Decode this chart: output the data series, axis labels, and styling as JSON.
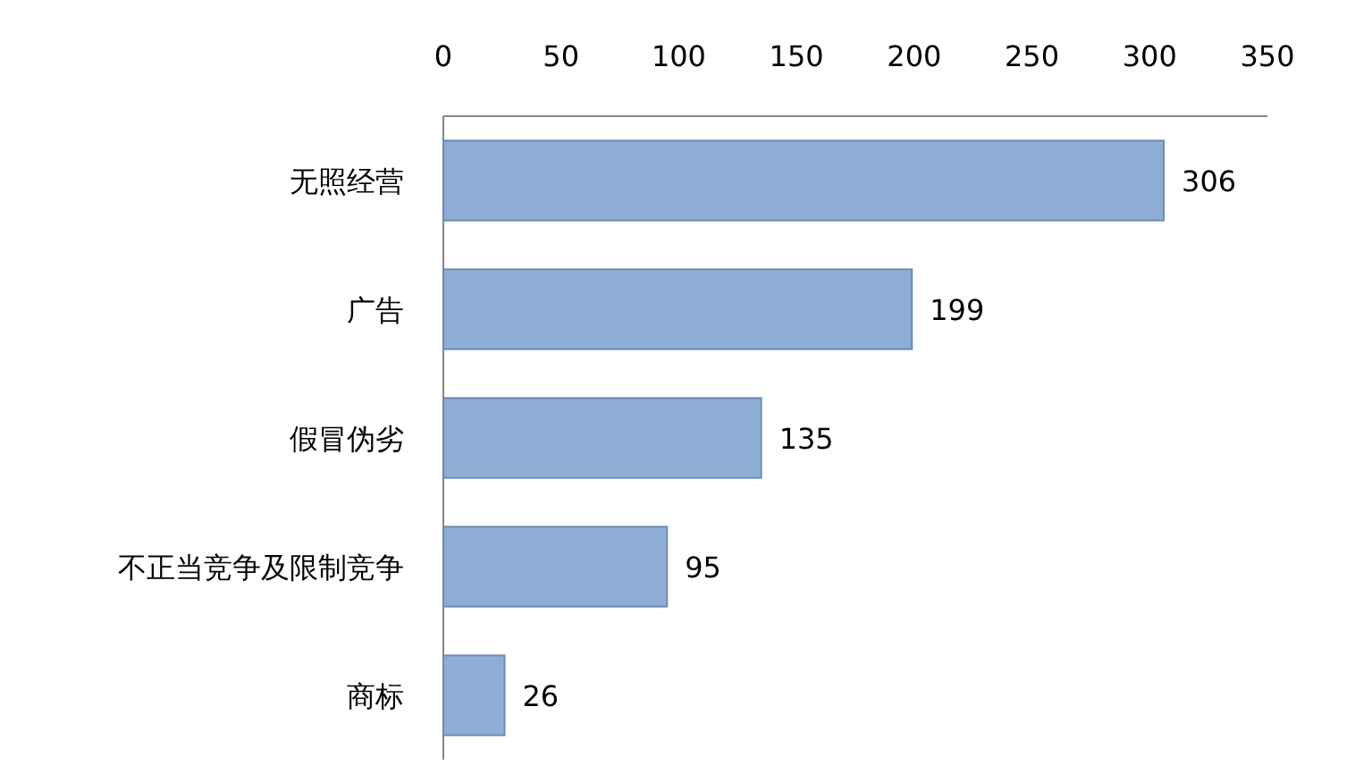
{
  "chart_data": {
    "type": "bar",
    "orientation": "horizontal",
    "categories": [
      "无照经营",
      "广告",
      "假冒伪劣",
      "不正当竞争及限制竞争",
      "商标"
    ],
    "values": [
      306,
      199,
      135,
      95,
      26
    ],
    "color": "#8eaed6",
    "xlim": [
      0,
      350
    ],
    "xticks": [
      0,
      50,
      100,
      150,
      200,
      250,
      300,
      350
    ],
    "data_labels": true,
    "grid": false
  }
}
